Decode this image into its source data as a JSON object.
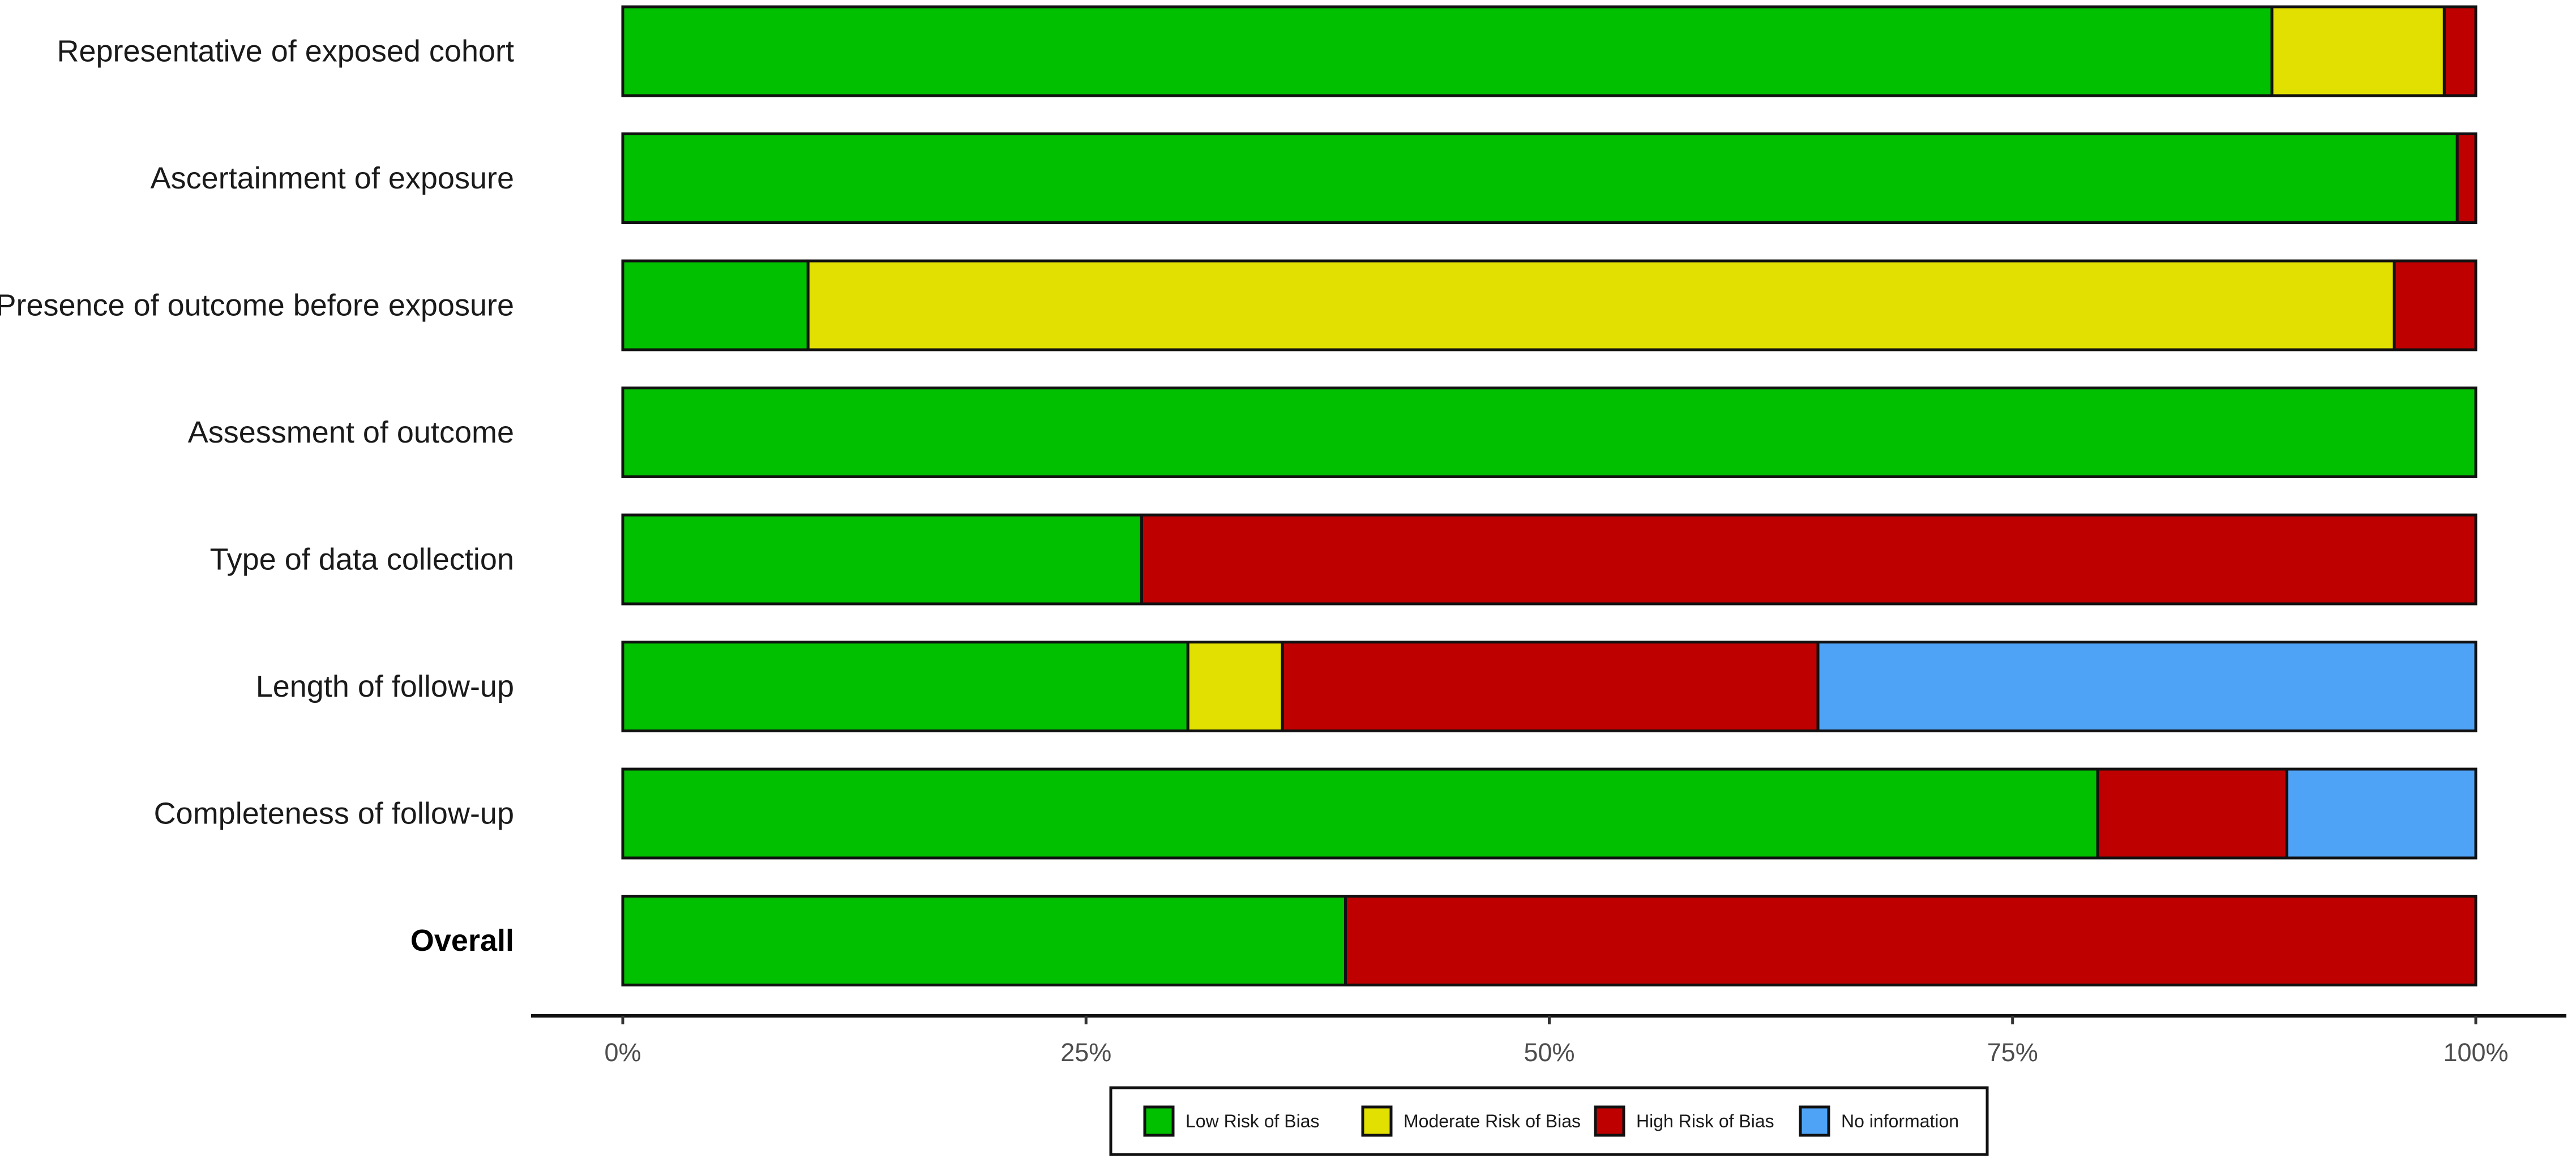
{
  "chart_data": {
    "type": "bar",
    "orientation": "horizontal",
    "stacked": true,
    "title": "",
    "xlabel": "",
    "ylabel": "",
    "xlim": [
      0,
      100
    ],
    "x_unit": "%",
    "grid": false,
    "legend_position": "bottom",
    "categories": [
      "Representative of exposed cohort",
      "Ascertainment of exposure",
      "Presence of outcome before exposure",
      "Assessment of outcome",
      "Type of data collection",
      "Length of follow-up",
      "Completeness of follow-up",
      "Overall"
    ],
    "bold_categories": [
      "Overall"
    ],
    "x_ticks": [
      0,
      25,
      50,
      75,
      100
    ],
    "x_tick_labels": [
      "0%",
      "25%",
      "50%",
      "75%",
      "100%"
    ],
    "series": [
      {
        "name": "Low Risk of Bias",
        "color": "#00c000",
        "values": [
          89,
          99,
          10,
          100,
          28,
          30.5,
          79.6,
          39
        ]
      },
      {
        "name": "Moderate Risk of Bias",
        "color": "#e2e000",
        "values": [
          9.3,
          0,
          85.6,
          0,
          0,
          5.1,
          0,
          0
        ]
      },
      {
        "name": "High Risk of Bias",
        "color": "#bf0000",
        "values": [
          1.7,
          1,
          4.4,
          0,
          72,
          28.9,
          10.2,
          61
        ]
      },
      {
        "name": "No information",
        "color": "#4fa3f7",
        "values": [
          0,
          0,
          0,
          0,
          0,
          35.5,
          10.2,
          0
        ]
      }
    ]
  }
}
